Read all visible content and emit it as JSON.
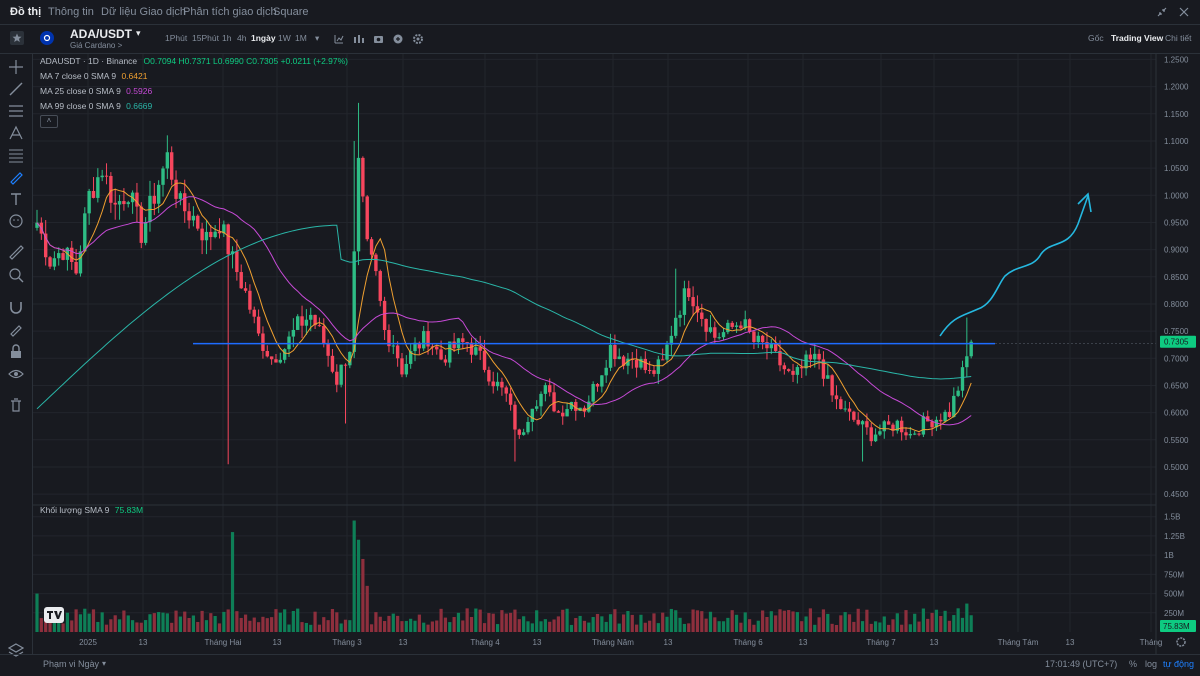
{
  "nav": {
    "tabs": [
      "Đồ thị",
      "Thông tin",
      "Dữ liệu Giao dịch",
      "Phân tích giao dịch",
      "Square"
    ]
  },
  "toolbar": {
    "symbol": "ADA/USDT",
    "subtitle": "Giá Cardano >",
    "timeframes": [
      "1Phút",
      "15Phút",
      "1h",
      "4h",
      "1ngày",
      "1W",
      "1M"
    ],
    "active_timeframe": "1ngày",
    "right_tabs": [
      "Gốc",
      "Trading View",
      "Chi tiết"
    ]
  },
  "legend": {
    "title": "ADAUSDT · 1D · Binance",
    "ohlc": "O0.7094 H0.7371 L0.6990 C0.7305 +0.0211 (+2.97%)",
    "ma7": {
      "label": "MA 7 close 0 SMA 9",
      "value": "0.6421",
      "color": "#f0a030"
    },
    "ma25": {
      "label": "MA 25 close 0 SMA 9",
      "value": "0.5926",
      "color": "#c64ad6"
    },
    "ma99": {
      "label": "MA 99 close 0 SMA 9",
      "value": "0.6669",
      "color": "#2ab6a8"
    },
    "volume": {
      "label": "Khối lượng SMA 9",
      "value": "75.83M"
    }
  },
  "bottom": {
    "range": "Phạm vi Ngày",
    "time": "17:01:49 (UTC+7)",
    "pct": "%",
    "log": "log",
    "auto": "tự động"
  },
  "chart_data": {
    "type": "candlestick",
    "price_axis": {
      "ticks": [
        "1.2500",
        "1.2000",
        "1.1500",
        "1.1000",
        "1.0500",
        "1.0000",
        "0.9500",
        "0.9000",
        "0.8500",
        "0.8000",
        "0.7500",
        "0.7000",
        "0.6500",
        "0.6000",
        "0.5500",
        "0.5000",
        "0.4500"
      ],
      "range": [
        0.43,
        1.26
      ]
    },
    "volume_axis": {
      "ticks": [
        "1.5B",
        "1.25B",
        "1B",
        "750M",
        "500M",
        "250M"
      ],
      "range": [
        0,
        1600000000
      ]
    },
    "x_ticks": [
      "2025",
      "13",
      "Tháng Hai",
      "13",
      "Tháng 3",
      "13",
      "Tháng 4",
      "13",
      "Tháng Năm",
      "13",
      "Tháng 6",
      "13",
      "Tháng 7",
      "13",
      "Tháng Tám",
      "13",
      "Tháng"
    ],
    "current_price": "0.7305",
    "current_volume": "75.83M",
    "horizontal_line": 0.727,
    "anchors": [
      [
        0,
        0.95
      ],
      [
        3,
        0.88
      ],
      [
        6,
        0.9
      ],
      [
        9,
        0.86
      ],
      [
        12,
        1.0
      ],
      [
        15,
        1.05
      ],
      [
        18,
        0.98
      ],
      [
        21,
        1.01
      ],
      [
        24,
        0.93
      ],
      [
        27,
        1.0
      ],
      [
        30,
        1.07
      ],
      [
        33,
        0.98
      ],
      [
        36,
        0.96
      ],
      [
        39,
        0.92
      ],
      [
        42,
        0.95
      ],
      [
        45,
        0.88
      ],
      [
        48,
        0.82
      ],
      [
        51,
        0.74
      ],
      [
        54,
        0.7
      ],
      [
        57,
        0.72
      ],
      [
        60,
        0.76
      ],
      [
        63,
        0.78
      ],
      [
        66,
        0.73
      ],
      [
        69,
        0.66
      ],
      [
        72,
        0.72
      ],
      [
        74,
        1.05
      ],
      [
        76,
        0.9
      ],
      [
        78,
        0.85
      ],
      [
        80,
        0.75
      ],
      [
        82,
        0.73
      ],
      [
        84,
        0.68
      ],
      [
        87,
        0.72
      ],
      [
        90,
        0.74
      ],
      [
        93,
        0.7
      ],
      [
        96,
        0.72
      ],
      [
        99,
        0.73
      ],
      [
        102,
        0.7
      ],
      [
        105,
        0.66
      ],
      [
        108,
        0.63
      ],
      [
        111,
        0.55
      ],
      [
        114,
        0.62
      ],
      [
        117,
        0.64
      ],
      [
        120,
        0.6
      ],
      [
        123,
        0.62
      ],
      [
        126,
        0.61
      ],
      [
        129,
        0.66
      ],
      [
        132,
        0.72
      ],
      [
        135,
        0.7
      ],
      [
        138,
        0.7
      ],
      [
        141,
        0.67
      ],
      [
        144,
        0.69
      ],
      [
        147,
        0.78
      ],
      [
        150,
        0.83
      ],
      [
        153,
        0.78
      ],
      [
        156,
        0.74
      ],
      [
        159,
        0.75
      ],
      [
        162,
        0.77
      ],
      [
        165,
        0.73
      ],
      [
        168,
        0.72
      ],
      [
        171,
        0.69
      ],
      [
        174,
        0.66
      ],
      [
        177,
        0.69
      ],
      [
        180,
        0.7
      ],
      [
        183,
        0.63
      ],
      [
        186,
        0.6
      ],
      [
        189,
        0.58
      ],
      [
        192,
        0.56
      ],
      [
        195,
        0.57
      ],
      [
        198,
        0.58
      ],
      [
        201,
        0.56
      ],
      [
        204,
        0.58
      ],
      [
        207,
        0.59
      ],
      [
        210,
        0.6
      ],
      [
        213,
        0.67
      ],
      [
        215,
        0.7305
      ]
    ],
    "projection": "freehand upward arrow toward ~1.00"
  }
}
